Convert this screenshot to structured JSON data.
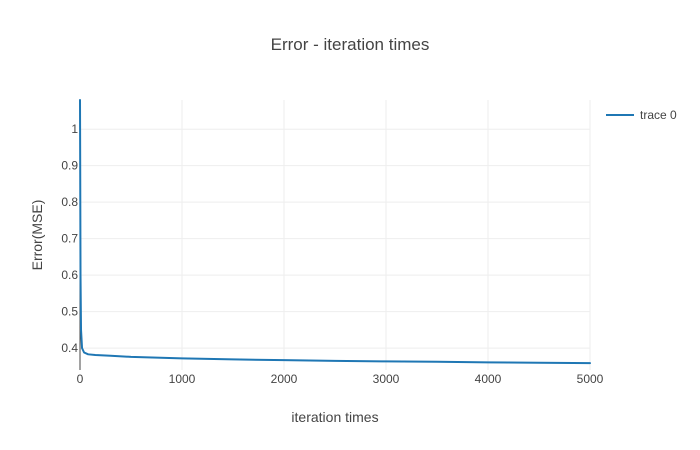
{
  "chart_data": {
    "type": "line",
    "title": "Error - iteration times",
    "xlabel": "iteration times",
    "ylabel": "Error(MSE)",
    "xlim": [
      0,
      5000
    ],
    "ylim": [
      0.34,
      1.08
    ],
    "x_ticks": [
      0,
      1000,
      2000,
      3000,
      4000,
      5000
    ],
    "x_tick_labels": [
      "0",
      "1000",
      "2000",
      "3000",
      "4000",
      "5000"
    ],
    "y_ticks": [
      0.4,
      0.5,
      0.6,
      0.7,
      0.8,
      0.9,
      1
    ],
    "y_tick_labels": [
      "0.4",
      "0.5",
      "0.6",
      "0.7",
      "0.8",
      "0.9",
      "1"
    ],
    "grid": true,
    "legend_position": "top-right",
    "series": [
      {
        "name": "trace 0",
        "color": "#1f77b4",
        "x": [
          0,
          2,
          5,
          10,
          20,
          40,
          80,
          150,
          300,
          500,
          1000,
          1500,
          2000,
          2500,
          3000,
          3500,
          4000,
          4500,
          5000
        ],
        "y": [
          1.08,
          0.9,
          0.6,
          0.45,
          0.4,
          0.388,
          0.383,
          0.381,
          0.379,
          0.376,
          0.372,
          0.369,
          0.367,
          0.365,
          0.3635,
          0.3625,
          0.361,
          0.36,
          0.359
        ]
      }
    ]
  }
}
